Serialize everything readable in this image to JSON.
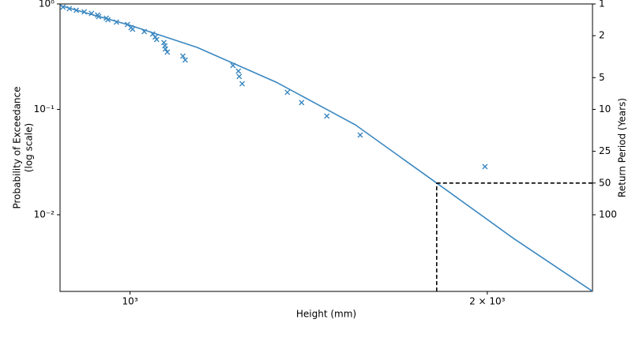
{
  "chart_data": {
    "type": "scatter",
    "xlabel": "Height (mm)",
    "ylabel": [
      "Probability of Exceedance",
      "(log scale)"
    ],
    "y2label": "Return Period (Years)",
    "xscale": "log",
    "yscale": "log",
    "y2scale": "log",
    "xlim": [
      873,
      2453
    ],
    "ylim": [
      0.001875,
      1
    ],
    "y2lim": [
      533.3,
      1
    ],
    "xticks": [
      {
        "value": 1000,
        "label": "10³"
      },
      {
        "value": 2000,
        "label": "2 × 10³"
      }
    ],
    "yticks": [
      {
        "value": 0.01,
        "label": "10⁻²"
      },
      {
        "value": 0.1,
        "label": "10⁻¹"
      },
      {
        "value": 1,
        "label": "10⁰"
      }
    ],
    "y2ticks": [
      1,
      2,
      5,
      10,
      25,
      50,
      100
    ],
    "points": {
      "color": "#3a87c0",
      "x": [
        878,
        889,
        901,
        915,
        928,
        939,
        941,
        955,
        958,
        974,
        995,
        1002,
        1005,
        1028,
        1045,
        1050,
        1053,
        1068,
        1070,
        1071,
        1075,
        1108,
        1113,
        1221,
        1234,
        1236,
        1243,
        1357,
        1395,
        1465,
        1563,
        1991
      ],
      "y": [
        0.933,
        0.902,
        0.871,
        0.842,
        0.813,
        0.786,
        0.759,
        0.733,
        0.708,
        0.673,
        0.639,
        0.596,
        0.576,
        0.547,
        0.519,
        0.485,
        0.46,
        0.43,
        0.401,
        0.374,
        0.349,
        0.32,
        0.294,
        0.261,
        0.231,
        0.205,
        0.175,
        0.145,
        0.116,
        0.0864,
        0.0571,
        0.0286
      ]
    },
    "fit": {
      "color": "#3a87c0",
      "x": [
        873,
        1000,
        1139,
        1328,
        1548,
        1813,
        2104,
        2453
      ],
      "y": [
        0.966,
        0.628,
        0.387,
        0.181,
        0.0714,
        0.02,
        0.00598,
        0.00188
      ]
    },
    "reference": {
      "x": 1813,
      "y": 0.02,
      "color": "#000000"
    }
  }
}
